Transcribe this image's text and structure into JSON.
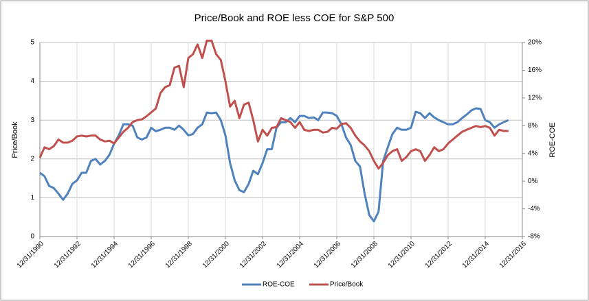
{
  "chart_data": {
    "type": "line",
    "title": "Price/Book and ROE less COE for S&P 500",
    "y_label": "Price/Book",
    "y2_label": "ROE-COE",
    "legend": "bottom",
    "grid": true,
    "x": [
      1991,
      1991.25,
      1991.5,
      1991.75,
      1992,
      1992.25,
      1992.5,
      1992.75,
      1993,
      1993.25,
      1993.5,
      1993.75,
      1994,
      1994.25,
      1994.5,
      1994.75,
      1995,
      1995.25,
      1995.5,
      1995.75,
      1996,
      1996.25,
      1996.5,
      1996.75,
      1997,
      1997.25,
      1997.5,
      1997.75,
      1998,
      1998.25,
      1998.5,
      1998.75,
      1999,
      1999.25,
      1999.5,
      1999.75,
      2000,
      2000.25,
      2000.5,
      2000.75,
      2001,
      2001.25,
      2001.5,
      2001.75,
      2002,
      2002.25,
      2002.5,
      2002.75,
      2003,
      2003.25,
      2003.5,
      2003.75,
      2004,
      2004.25,
      2004.5,
      2004.75,
      2005,
      2005.25,
      2005.5,
      2005.75,
      2006,
      2006.25,
      2006.5,
      2006.75,
      2007,
      2007.25,
      2007.5,
      2007.75,
      2008,
      2008.25,
      2008.5,
      2008.75,
      2009,
      2009.25,
      2009.5,
      2009.75,
      2010,
      2010.25,
      2010.5,
      2010.75,
      2011,
      2011.25,
      2011.5,
      2011.75,
      2012,
      2012.25,
      2012.5,
      2012.75,
      2013,
      2013.25,
      2013.5,
      2013.75,
      2014,
      2014.25,
      2014.5,
      2014.75,
      2015,
      2015.25,
      2015.5,
      2015.75,
      2016,
      2016.25
    ],
    "series": [
      {
        "name": "ROE-COE",
        "color": "#4f81bd",
        "axis": "y2",
        "values": [
          1.2,
          0.7,
          -0.7,
          -1.0,
          -1.8,
          -2.7,
          -1.8,
          -0.4,
          0.1,
          1.2,
          1.2,
          2.9,
          3.2,
          2.4,
          2.9,
          3.8,
          5.4,
          6.6,
          8.2,
          8.2,
          8.0,
          6.3,
          6.0,
          6.3,
          7.7,
          7.2,
          7.4,
          7.7,
          7.7,
          7.4,
          8.0,
          7.4,
          6.6,
          6.8,
          7.7,
          8.2,
          9.9,
          9.8,
          9.9,
          8.8,
          6.6,
          2.6,
          0.1,
          -1.3,
          -1.6,
          -0.4,
          1.5,
          1.0,
          2.6,
          4.6,
          4.6,
          7.7,
          8.5,
          8.5,
          9.1,
          8.5,
          9.4,
          9.4,
          9.1,
          9.2,
          8.8,
          9.9,
          9.9,
          9.8,
          9.4,
          8.2,
          6.3,
          5.2,
          2.9,
          2.1,
          -1.8,
          -4.9,
          -5.8,
          -4.4,
          2.9,
          4.9,
          6.8,
          7.7,
          7.4,
          7.4,
          7.7,
          10.0,
          9.8,
          9.1,
          9.8,
          9.2,
          8.8,
          8.5,
          8.2,
          8.2,
          8.5,
          9.1,
          9.6,
          10.2,
          10.5,
          10.4,
          8.8,
          8.5,
          7.7,
          8.2,
          8.5,
          8.8
        ]
      },
      {
        "name": "Price/Book",
        "color": "#c0504d",
        "values": [
          2.03,
          2.3,
          2.25,
          2.33,
          2.5,
          2.42,
          2.42,
          2.47,
          2.58,
          2.6,
          2.58,
          2.6,
          2.6,
          2.5,
          2.45,
          2.47,
          2.4,
          2.55,
          2.7,
          2.8,
          2.95,
          3.0,
          3.02,
          3.1,
          3.2,
          3.3,
          3.7,
          3.85,
          3.9,
          4.35,
          4.4,
          3.85,
          4.6,
          4.7,
          4.95,
          4.6,
          5.05,
          5.05,
          4.7,
          4.55,
          4.0,
          3.35,
          3.5,
          3.05,
          3.4,
          3.45,
          3.0,
          2.45,
          2.75,
          2.6,
          2.8,
          2.82,
          3.05,
          3.0,
          2.95,
          2.8,
          2.95,
          2.75,
          2.72,
          2.75,
          2.75,
          2.68,
          2.7,
          2.8,
          2.78,
          2.9,
          2.92,
          2.8,
          2.6,
          2.45,
          2.35,
          2.2,
          1.95,
          1.75,
          1.9,
          2.1,
          2.2,
          2.25,
          1.95,
          2.05,
          2.2,
          2.25,
          2.2,
          1.95,
          2.1,
          2.3,
          2.2,
          2.25,
          2.4,
          2.5,
          2.6,
          2.7,
          2.75,
          2.8,
          2.85,
          2.82,
          2.85,
          2.8,
          2.6,
          2.75,
          2.72,
          2.72
        ]
      }
    ],
    "xlim": [
      1991,
      2017
    ],
    "xticks": [
      {
        "value": 1991,
        "label": "12/31/1990"
      },
      {
        "value": 1993,
        "label": "12/31/1992"
      },
      {
        "value": 1995,
        "label": "12/31/1994"
      },
      {
        "value": 1997,
        "label": "12/31/1996"
      },
      {
        "value": 1999,
        "label": "12/31/1998"
      },
      {
        "value": 2001,
        "label": "12/31/2000"
      },
      {
        "value": 2003,
        "label": "12/31/2002"
      },
      {
        "value": 2005,
        "label": "12/31/2004"
      },
      {
        "value": 2007,
        "label": "12/31/2006"
      },
      {
        "value": 2009,
        "label": "12/31/2008"
      },
      {
        "value": 2011,
        "label": "12/31/2010"
      },
      {
        "value": 2013,
        "label": "12/31/2012"
      },
      {
        "value": 2015,
        "label": "12/31/2014"
      },
      {
        "value": 2017,
        "label": "12/31/2016"
      }
    ],
    "ylim": [
      0,
      5
    ],
    "yticks": [
      0,
      1,
      2,
      3,
      4,
      5
    ],
    "y2lim": [
      -8,
      20
    ],
    "y2ticks": [
      {
        "value": -8,
        "label": "-8%"
      },
      {
        "value": -4,
        "label": "-4%"
      },
      {
        "value": 0,
        "label": "0%"
      },
      {
        "value": 4,
        "label": "4%"
      },
      {
        "value": 8,
        "label": "8%"
      },
      {
        "value": 12,
        "label": "12%"
      },
      {
        "value": 16,
        "label": "16%"
      },
      {
        "value": 20,
        "label": "20%"
      }
    ]
  }
}
